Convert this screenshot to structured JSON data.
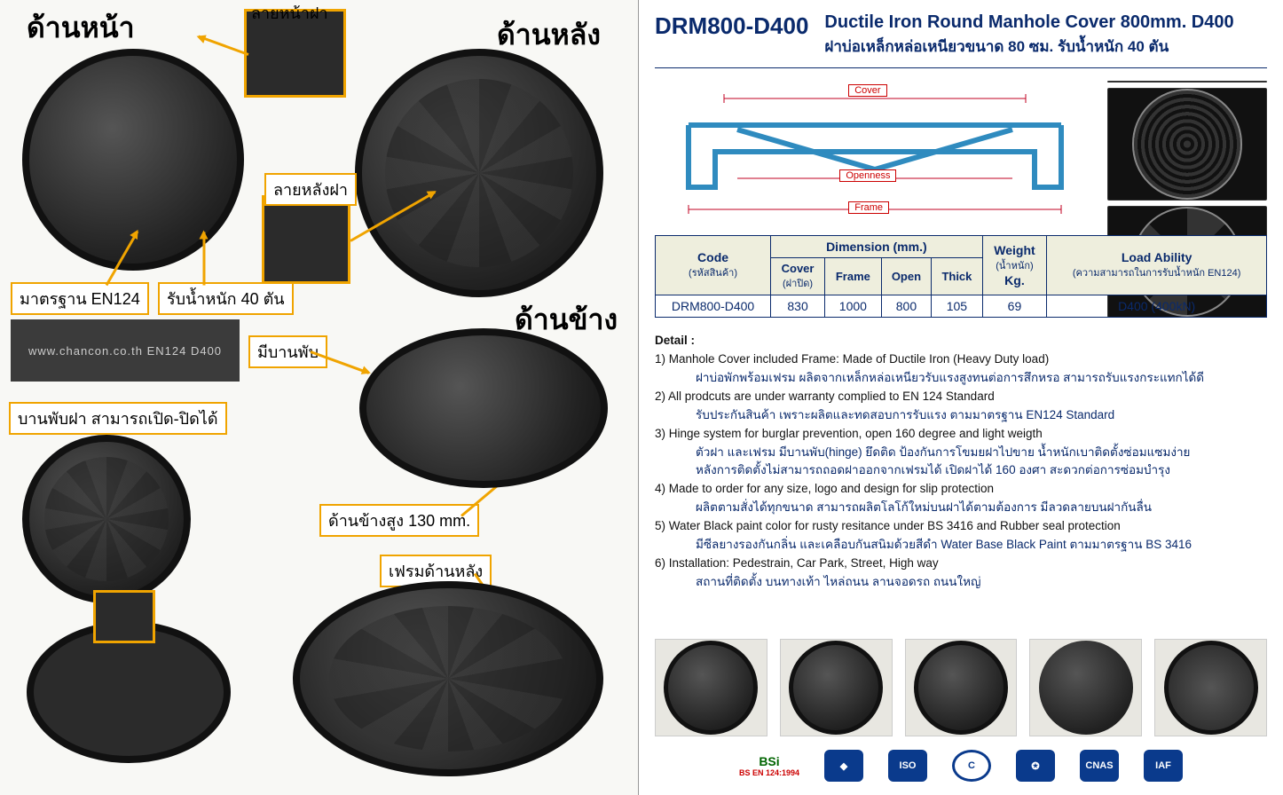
{
  "left": {
    "labels": {
      "front": "ด้านหน้า",
      "back": "ด้านหลัง",
      "side": "ด้านข้าง",
      "front_pattern": "ลายหน้าฝา",
      "back_pattern": "ลายหลังฝา",
      "standard": "มาตรฐาน EN124",
      "load": "รับน้ำหนัก 40 ตัน",
      "has_hinge": "มีบานพับ",
      "hinge_openclose": "บานพับฝา สามารถเปิด-ปิดได้",
      "side_height": "ด้านข้างสูง 130 mm.",
      "frame_back": "เฟรมด้านหลัง",
      "texture_text": "www.chancon.co.th  EN124  D400"
    },
    "accent_color": "#f0a400"
  },
  "right": {
    "code": "DRM800-D400",
    "title_en": "Ductile Iron Round Manhole Cover 800mm. D400",
    "title_th": "ฝาบ่อเหล็กหล่อเหนียวขนาด 80 ซม. รับน้ำหนัก 40 ตัน",
    "brand_color": "#0a2a6c",
    "diagram": {
      "labels": {
        "cover": "Cover",
        "openness": "Openness",
        "frame": "Frame"
      },
      "line_color": "#c00020",
      "frame_color": "#2f8bbf"
    },
    "table": {
      "headers": {
        "code": "Code",
        "code_sub": "(รหัสสินค้า)",
        "dimension": "Dimension (mm.)",
        "cover": "Cover",
        "cover_sub": "(ฝาปิด)",
        "frame": "Frame",
        "open": "Open",
        "thick": "Thick",
        "weight": "Weight",
        "weight_sub": "(น้ำหนัก)",
        "weight_unit": "Kg.",
        "load": "Load Ability",
        "load_sub": "(ความสามารถในการรับน้ำหนัก EN124)"
      },
      "row": {
        "code": "DRM800-D400",
        "cover": "830",
        "frame": "1000",
        "open": "800",
        "thick": "105",
        "weight": "69",
        "load": "D400 (400kN)"
      }
    },
    "details_lead": "Detail :",
    "details": [
      {
        "en": "1) Manhole Cover included Frame: Made of Ductile Iron (Heavy Duty load)",
        "th": "ฝาบ่อพักพร้อมเฟรม ผลิตจากเหล็กหล่อเหนียวรับแรงสูงทนต่อการสึกหรอ สามารถรับแรงกระแทกได้ดี"
      },
      {
        "en": "2) All prodcuts are under warranty complied to EN 124 Standard",
        "th": "รับประกันสินค้า เพราะผลิตและทดสอบการรับแรง ตามมาตรฐาน EN124 Standard"
      },
      {
        "en": "3) Hinge system for burglar prevention, open 160 degree and light weigth",
        "th": "ตัวฝา และเฟรม มีบานพับ(hinge) ยึดติด ป้องกันการโขมยฝาไปขาย   น้ำหนักเบาติดตั้งซ่อมแซมง่าย"
      },
      {
        "en": "",
        "th": "หลังการติดตั้งไม่สามารถถอดฝาออกจากเฟรมได้  เปิดฝาได้ 160 องศา สะดวกต่อการซ่อมบำรุง"
      },
      {
        "en": "4) Made to order for any size, logo and design for slip protection",
        "th": "ผลิตตามสั่งได้ทุกขนาด สามารถผลิตโลโก้ใหม่บนฝาได้ตามต้องการ มีลวดลายบนฝากันลื่น"
      },
      {
        "en": "5) Water Black paint color for rusty resitance under BS 3416 and Rubber seal protection",
        "th": "มีซีลยางรองกันกลิ่น และเคลือบกันสนิมด้วยสีดำ Water Base Black Paint ตามมาตรฐาน BS 3416"
      },
      {
        "en": "6) Installation: Pedestrain, Car Park, Street, High way",
        "th": "สถานที่ติดตั้ง บนทางเท้า ไหล่ถนน ลานจอดรถ ถนนใหญ่"
      }
    ],
    "logos": [
      {
        "name": "bsi",
        "text": "BSi",
        "sub": "BS EN 124:1994"
      },
      {
        "name": "tis",
        "text": "◆"
      },
      {
        "name": "iso",
        "text": "ISO"
      },
      {
        "name": "ccc",
        "text": "C"
      },
      {
        "name": "ukas",
        "text": "✪"
      },
      {
        "name": "cnas",
        "text": "CNAS"
      },
      {
        "name": "iaf",
        "text": "IAF"
      }
    ]
  }
}
